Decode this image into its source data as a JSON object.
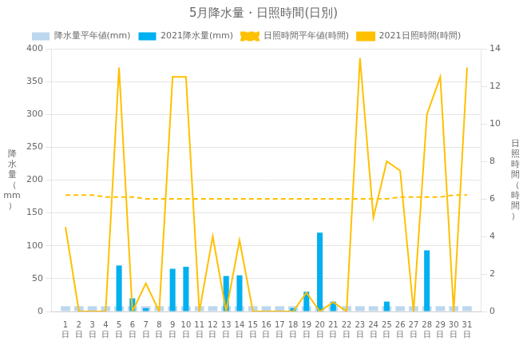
{
  "chart_data": {
    "type": "bar",
    "title": "5月降水量・日照時間(日別)",
    "x": [
      1,
      2,
      3,
      4,
      5,
      6,
      7,
      8,
      9,
      10,
      11,
      12,
      13,
      14,
      15,
      16,
      17,
      18,
      19,
      20,
      21,
      22,
      23,
      24,
      25,
      26,
      27,
      28,
      29,
      30,
      31
    ],
    "xlim": [
      0.5,
      31.5
    ],
    "xticks": [
      {
        "value": 1,
        "label": "1\n日"
      },
      {
        "value": 2,
        "label": "2\n日"
      },
      {
        "value": 3,
        "label": "3\n日"
      },
      {
        "value": 4,
        "label": "4\n日"
      },
      {
        "value": 5,
        "label": "5\n日"
      },
      {
        "value": 6,
        "label": "6\n日"
      },
      {
        "value": 7,
        "label": "7\n日"
      },
      {
        "value": 8,
        "label": "8\n日"
      },
      {
        "value": 9,
        "label": "9\n日"
      },
      {
        "value": 10,
        "label": "10\n日"
      },
      {
        "value": 11,
        "label": "11\n日"
      },
      {
        "value": 12,
        "label": "12\n日"
      },
      {
        "value": 13,
        "label": "13\n日"
      },
      {
        "value": 14,
        "label": "14\n日"
      },
      {
        "value": 15,
        "label": "15\n日"
      },
      {
        "value": 16,
        "label": "16\n日"
      },
      {
        "value": 17,
        "label": "17\n日"
      },
      {
        "value": 18,
        "label": "18\n日"
      },
      {
        "value": 19,
        "label": "19\n日"
      },
      {
        "value": 20,
        "label": "20\n日"
      },
      {
        "value": 21,
        "label": "21\n日"
      },
      {
        "value": 22,
        "label": "22\n日"
      },
      {
        "value": 23,
        "label": "23\n日"
      },
      {
        "value": 24,
        "label": "24\n日"
      },
      {
        "value": 25,
        "label": "25\n日"
      },
      {
        "value": 26,
        "label": "26\n日"
      },
      {
        "value": 27,
        "label": "27\n日"
      },
      {
        "value": 28,
        "label": "28\n日"
      },
      {
        "value": 29,
        "label": "29\n日"
      },
      {
        "value": 30,
        "label": "30\n日"
      },
      {
        "value": 31,
        "label": "31\n日"
      }
    ],
    "ylabel": "降\n水\n量\n（\nmm\n）",
    "y2label": "日\n照\n時\n間\n（\n時\n間\n）",
    "ylim": [
      0,
      400
    ],
    "yticks": [
      0,
      50,
      100,
      150,
      200,
      250,
      300,
      350,
      400
    ],
    "y2lim": [
      0,
      14
    ],
    "y2ticks": [
      0,
      2,
      4,
      6,
      8,
      10,
      12,
      14
    ],
    "grid": "y",
    "legend": "top",
    "series": [
      {
        "name": "降水量平年値(mm)",
        "type": "bar",
        "color": "#bdd7ee",
        "values": [
          8,
          8,
          8,
          8,
          8,
          8,
          8,
          8,
          8,
          8,
          8,
          8,
          8,
          8,
          8,
          8,
          8,
          8,
          8,
          8,
          8,
          8,
          8,
          8,
          8,
          8,
          8,
          8,
          8,
          8,
          8
        ]
      },
      {
        "name": "2021降水量(mm)",
        "type": "bar",
        "color": "#00b0f0",
        "values": [
          0,
          0,
          0,
          0,
          70,
          20,
          5,
          0,
          65,
          68,
          0,
          0,
          54,
          55,
          0,
          0,
          0,
          5,
          30,
          120,
          15,
          0,
          0,
          0,
          15,
          0,
          0,
          93,
          0,
          0,
          0
        ]
      },
      {
        "name": "日照時間平年値(時間)",
        "type": "line",
        "color": "#ffc000",
        "line_style": "dashed",
        "axis": "y2",
        "values": [
          6.2,
          6.2,
          6.2,
          6.1,
          6.1,
          6.1,
          6.0,
          6.0,
          6.0,
          6.0,
          6.0,
          6.0,
          6.0,
          6.0,
          6.0,
          6.0,
          6.0,
          6.0,
          6.0,
          6.0,
          6.0,
          6.0,
          6.0,
          6.0,
          6.0,
          6.1,
          6.1,
          6.1,
          6.1,
          6.2,
          6.2
        ]
      },
      {
        "name": "2021日照時間(時間)",
        "type": "line",
        "color": "#ffc000",
        "line_style": "solid",
        "axis": "y2",
        "values": [
          4.5,
          0,
          0,
          0,
          13,
          0,
          1.5,
          0,
          12.5,
          12.5,
          0,
          4,
          0,
          3.8,
          0,
          0,
          0,
          0,
          1,
          0,
          0.5,
          0,
          13.5,
          5,
          8,
          7.5,
          0,
          10.5,
          12.5,
          0,
          13
        ]
      }
    ]
  }
}
